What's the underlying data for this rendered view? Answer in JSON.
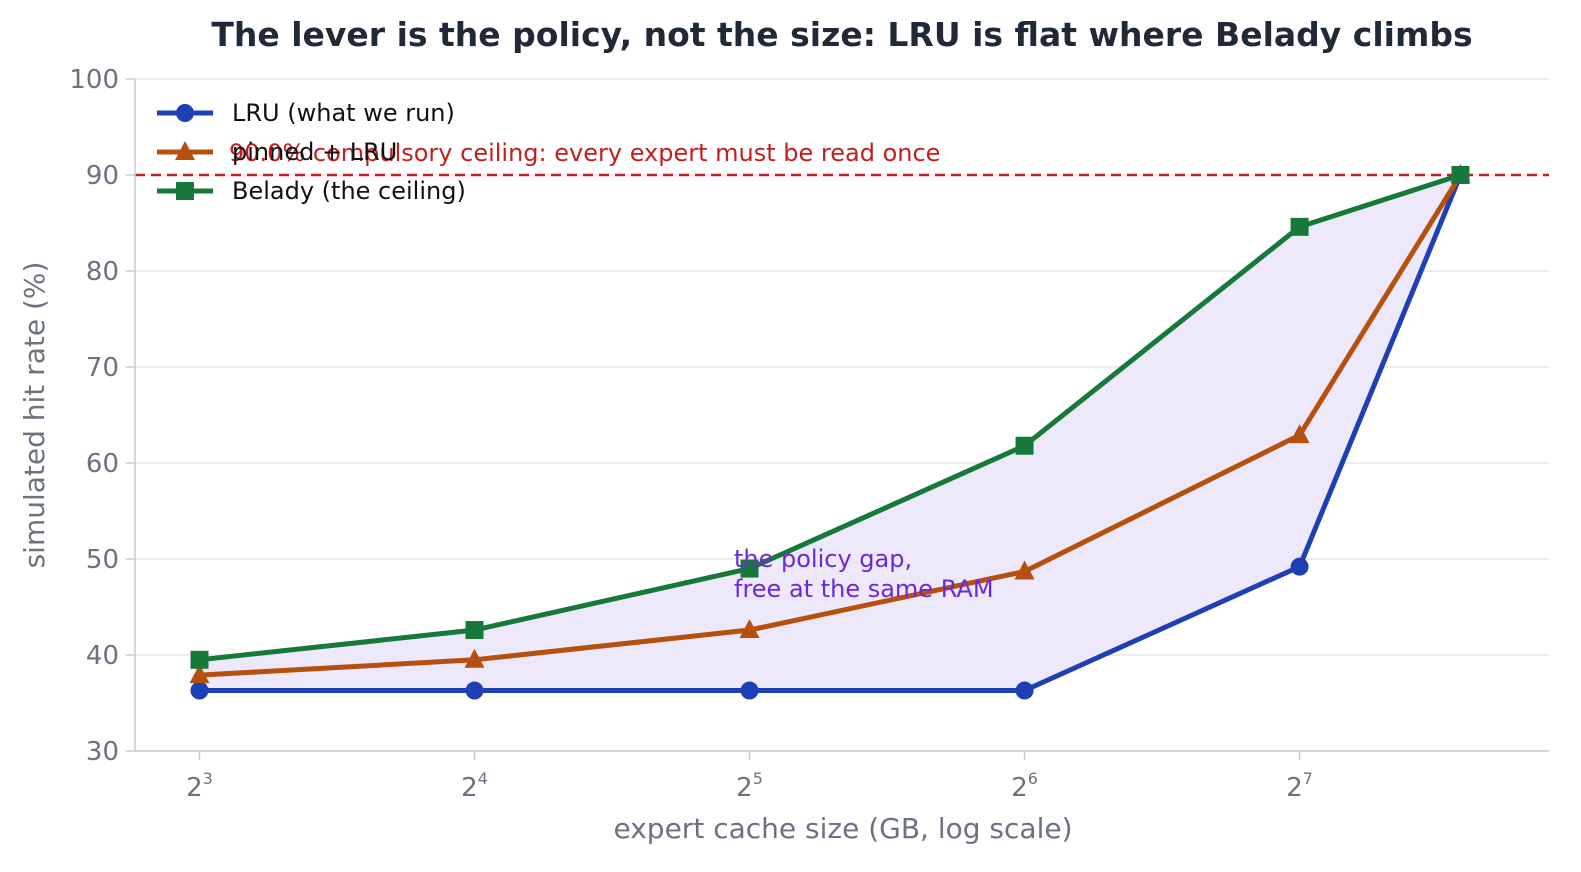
{
  "chart_data": {
    "type": "line",
    "title": "The lever is the policy, not the size: LRU is flat where Belady climbs",
    "xlabel": "expert cache size (GB, log scale)",
    "ylabel": "simulated hit rate (%)",
    "x_scale": "log2",
    "x": [
      8,
      16,
      32,
      64,
      128,
      192
    ],
    "x_ticks": [
      {
        "value": 8,
        "base": "2",
        "exp": "3"
      },
      {
        "value": 16,
        "base": "2",
        "exp": "4"
      },
      {
        "value": 32,
        "base": "2",
        "exp": "5"
      },
      {
        "value": 64,
        "base": "2",
        "exp": "6"
      },
      {
        "value": 128,
        "base": "2",
        "exp": "7"
      }
    ],
    "xlim": [
      6.8,
      240
    ],
    "ylim": [
      30,
      100
    ],
    "y_ticks": [
      30,
      40,
      50,
      60,
      70,
      80,
      90,
      100
    ],
    "grid": "horizontal",
    "legend_position": "top-left",
    "series": [
      {
        "name": "LRU (what we run)",
        "color": "#1f3fb5",
        "marker": "circle",
        "values": [
          36.3,
          36.3,
          36.3,
          36.3,
          49.2,
          90.0
        ]
      },
      {
        "name": "pinned + LRU",
        "color": "#b5500f",
        "marker": "triangle",
        "values": [
          37.9,
          39.5,
          42.6,
          48.7,
          62.9,
          90.0
        ]
      },
      {
        "name": "Belady (the ceiling)",
        "color": "#16793a",
        "marker": "square",
        "values": [
          39.5,
          42.6,
          49.0,
          61.8,
          84.6,
          90.0
        ]
      }
    ],
    "shaded_region": {
      "between": [
        "LRU (what we run)",
        "Belady (the ceiling)"
      ],
      "color": "#ede9fb"
    },
    "reference_line": {
      "y": 90.0,
      "label": "90.0% compulsory ceiling: every expert must be read once",
      "color": "#c0201f",
      "style": "dashed"
    },
    "annotation": {
      "lines": [
        "the policy gap,",
        "free at the same RAM"
      ],
      "x": 30,
      "y": 47.5,
      "color": "#6d28d9"
    }
  }
}
